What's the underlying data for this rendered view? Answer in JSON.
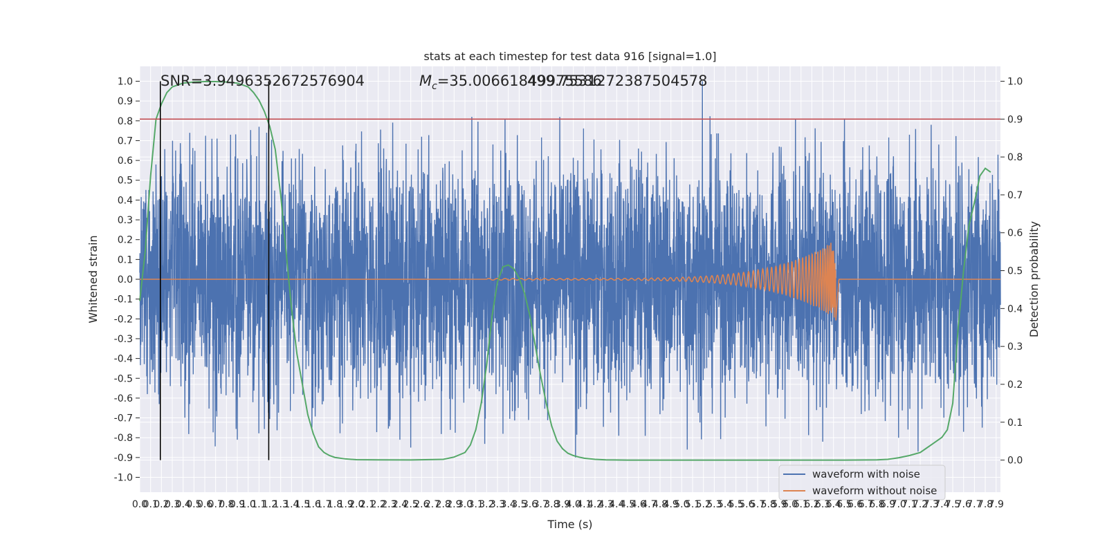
{
  "chart_data": {
    "type": "line",
    "title": "stats at each timestep for test data 916 [signal=1.0]",
    "xlabel": "Time (s)",
    "ylabel": "Whitened strain",
    "y2label": "Detection probability",
    "xlim": [
      0.0,
      7.94
    ],
    "ylim": [
      -1.0,
      1.0
    ],
    "y2lim": [
      -0.0455,
      1.0
    ],
    "x_tick_labels": [
      "0.0",
      "0.1",
      "0.2",
      "0.3",
      "0.4",
      "0.5",
      "0.6",
      "0.7",
      "0.8",
      "0.9",
      "1.0",
      "1.1",
      "1.2",
      "1.3",
      "1.4",
      "1.5",
      "1.6",
      "1.7",
      "1.8",
      "1.9",
      "2.0",
      "2.1",
      "2.2",
      "2.3",
      "2.4",
      "2.5",
      "2.6",
      "2.7",
      "2.8",
      "2.9",
      "3.0",
      "3.1",
      "3.2",
      "3.3",
      "3.4",
      "3.5",
      "3.6",
      "3.7",
      "3.8",
      "3.9",
      "4.0",
      "4.1",
      "4.2",
      "4.3",
      "4.4",
      "4.5",
      "4.6",
      "4.7",
      "4.8",
      "4.9",
      "5.0",
      "5.1",
      "5.2",
      "5.3",
      "5.4",
      "5.5",
      "5.6",
      "5.7",
      "5.8",
      "5.9",
      "6.0",
      "6.1",
      "6.2",
      "6.3",
      "6.4",
      "6.5",
      "6.6",
      "6.7",
      "6.8",
      "6.9",
      "7.0",
      "7.1",
      "7.2",
      "7.3",
      "7.4",
      "7.5",
      "7.6",
      "7.7",
      "7.8",
      "7.9"
    ],
    "y_tick_labels": [
      "1.0",
      "0.9",
      "0.8",
      "0.7",
      "0.6",
      "0.5",
      "0.4",
      "0.3",
      "0.2",
      "0.1",
      "0.0",
      "-0.1",
      "-0.2",
      "-0.3",
      "-0.4",
      "-0.5",
      "-0.6",
      "-0.7",
      "-0.8",
      "-0.9",
      "-1.0"
    ],
    "y2_tick_labels": [
      "1.0",
      "0.9",
      "0.8",
      "0.7",
      "0.6",
      "0.5",
      "0.4",
      "0.3",
      "0.2",
      "0.1",
      "0.0"
    ],
    "grid": true,
    "legend_position": "bottom-right",
    "annotations": {
      "snr": "SNR=3.9496352672576904",
      "mc_symbol": "M",
      "mc_sub": "c",
      "mc_value": "=35.00661849975586",
      "mc_overlap": "499.7531272387504578"
    },
    "threshold_line": {
      "value": 0.9,
      "axis": "right",
      "color": "#c44e52"
    },
    "vertical_lines": [
      0.19,
      1.19
    ],
    "series": [
      {
        "name": "waveform with noise",
        "color": "#4c72b0",
        "noise_envelope": {
          "upper_typical": 0.4,
          "lower_typical": -0.45
        },
        "peaks": [
          {
            "x": 0.07,
            "y": 0.5
          },
          {
            "x": 0.2,
            "y": 0.52
          },
          {
            "x": 0.33,
            "y": 0.65
          },
          {
            "x": 0.48,
            "y": 0.58
          },
          {
            "x": 0.88,
            "y": 0.62
          },
          {
            "x": 1.1,
            "y": 0.77
          },
          {
            "x": 1.17,
            "y": 0.74
          },
          {
            "x": 1.4,
            "y": 0.61
          },
          {
            "x": 2.23,
            "y": 0.56
          },
          {
            "x": 2.6,
            "y": 0.72
          },
          {
            "x": 3.33,
            "y": 0.65
          },
          {
            "x": 3.37,
            "y": 0.81
          },
          {
            "x": 4.04,
            "y": 0.6
          },
          {
            "x": 4.6,
            "y": 0.66
          },
          {
            "x": 5.19,
            "y": 1.0
          },
          {
            "x": 5.9,
            "y": 0.67
          },
          {
            "x": 6.05,
            "y": 0.81
          },
          {
            "x": 6.8,
            "y": 0.62
          },
          {
            "x": 7.1,
            "y": 0.73
          },
          {
            "x": 7.3,
            "y": 0.78
          },
          {
            "x": 7.6,
            "y": 0.65
          }
        ],
        "troughs": [
          {
            "x": 0.07,
            "y": -0.58
          },
          {
            "x": 0.18,
            "y": -0.63
          },
          {
            "x": 0.46,
            "y": -0.63
          },
          {
            "x": 0.9,
            "y": -0.81
          },
          {
            "x": 1.18,
            "y": -0.62
          },
          {
            "x": 2.4,
            "y": -0.81
          },
          {
            "x": 2.5,
            "y": -0.85
          },
          {
            "x": 3.35,
            "y": -0.78
          },
          {
            "x": 4.02,
            "y": -0.9
          },
          {
            "x": 4.42,
            "y": -0.79
          },
          {
            "x": 5.05,
            "y": -0.86
          },
          {
            "x": 6.3,
            "y": -0.82
          },
          {
            "x": 7.0,
            "y": -0.8
          },
          {
            "x": 7.18,
            "y": -0.87
          },
          {
            "x": 7.6,
            "y": -0.77
          }
        ]
      },
      {
        "name": "waveform without noise",
        "color": "#dd8452",
        "chirp": {
          "start": 3.2,
          "merger": 6.42,
          "amp_start": 0.004,
          "amp_peak": 0.2,
          "amp_trough": -0.22
        }
      },
      {
        "name": "detection probability",
        "color": "#55a868",
        "axis": "right",
        "x": [
          0.0,
          0.05,
          0.1,
          0.15,
          0.2,
          0.25,
          0.3,
          0.4,
          0.5,
          0.6,
          0.7,
          0.8,
          0.9,
          1.0,
          1.05,
          1.1,
          1.15,
          1.2,
          1.25,
          1.3,
          1.35,
          1.4,
          1.45,
          1.5,
          1.55,
          1.6,
          1.65,
          1.7,
          1.75,
          1.8,
          1.9,
          2.0,
          2.2,
          2.5,
          2.8,
          2.9,
          3.0,
          3.05,
          3.1,
          3.15,
          3.2,
          3.25,
          3.3,
          3.35,
          3.4,
          3.45,
          3.5,
          3.55,
          3.6,
          3.65,
          3.7,
          3.75,
          3.8,
          3.85,
          3.9,
          3.95,
          4.0,
          4.05,
          4.1,
          4.2,
          4.3,
          4.5,
          5.0,
          5.5,
          6.0,
          6.5,
          6.8,
          6.9,
          7.0,
          7.1,
          7.2,
          7.25,
          7.3,
          7.35,
          7.4,
          7.45,
          7.5,
          7.55,
          7.6,
          7.65,
          7.7,
          7.75,
          7.8,
          7.85
        ],
        "y": [
          0.42,
          0.55,
          0.75,
          0.9,
          0.94,
          0.97,
          0.985,
          0.995,
          0.998,
          0.999,
          0.999,
          0.998,
          0.995,
          0.985,
          0.97,
          0.95,
          0.92,
          0.88,
          0.82,
          0.7,
          0.55,
          0.4,
          0.28,
          0.2,
          0.12,
          0.07,
          0.035,
          0.02,
          0.012,
          0.007,
          0.003,
          0.001,
          0.0005,
          0.0003,
          0.002,
          0.008,
          0.02,
          0.04,
          0.08,
          0.15,
          0.25,
          0.38,
          0.47,
          0.51,
          0.515,
          0.505,
          0.48,
          0.44,
          0.38,
          0.3,
          0.22,
          0.15,
          0.09,
          0.05,
          0.03,
          0.018,
          0.012,
          0.008,
          0.005,
          0.002,
          0.0005,
          0.0,
          0.0,
          0.0,
          0.0,
          0.0,
          0.0005,
          0.002,
          0.006,
          0.012,
          0.02,
          0.03,
          0.04,
          0.05,
          0.06,
          0.08,
          0.15,
          0.35,
          0.5,
          0.62,
          0.68,
          0.75,
          0.77,
          0.76
        ]
      }
    ]
  }
}
